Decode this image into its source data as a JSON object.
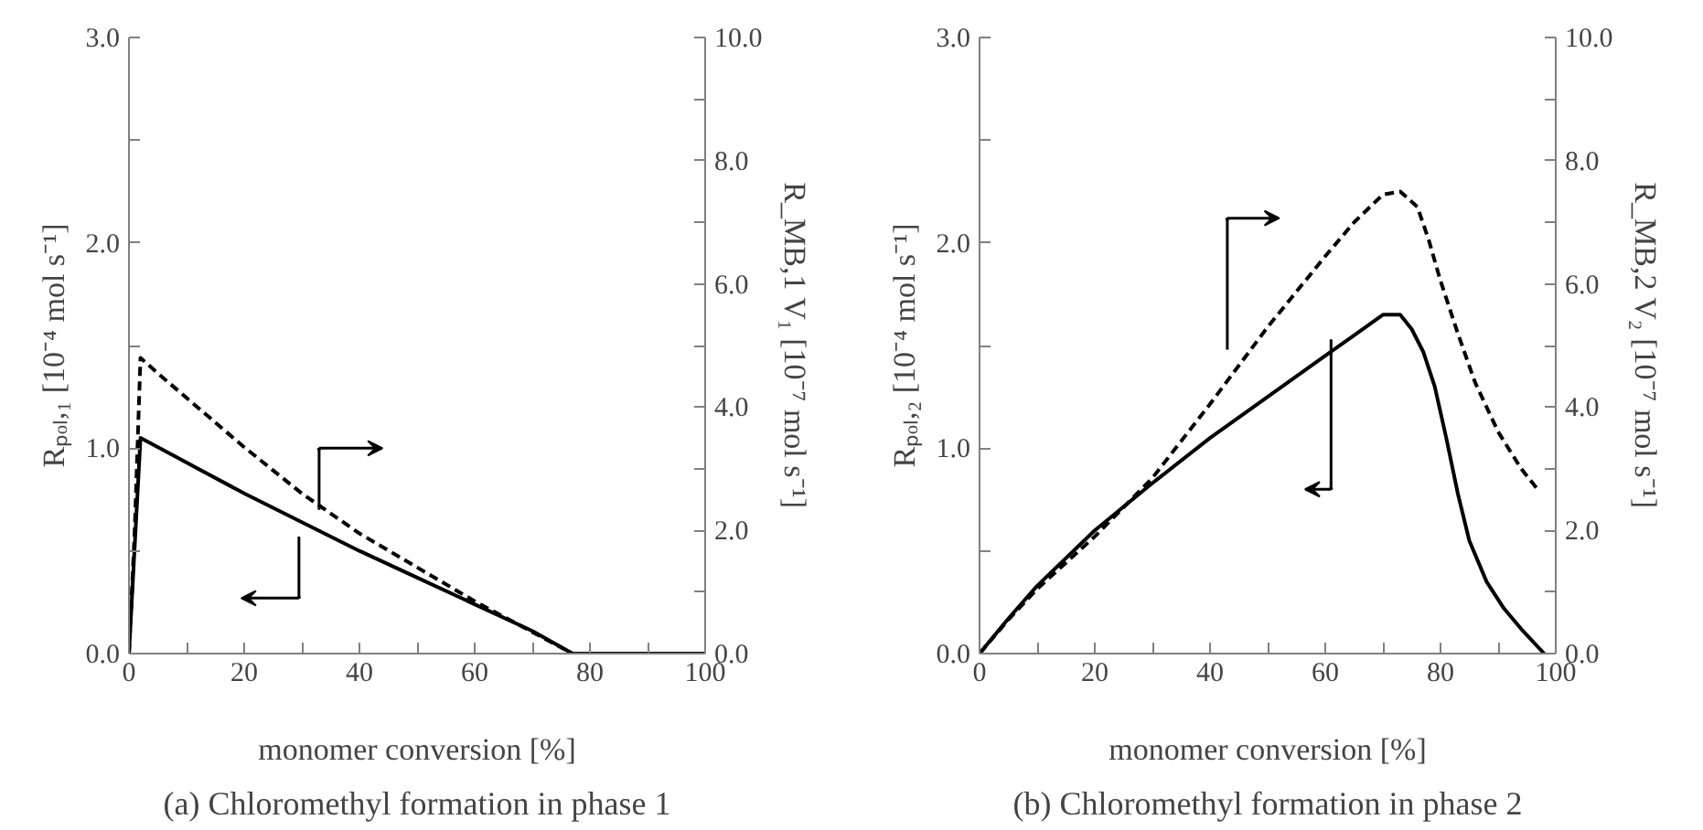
{
  "chart_data": [
    {
      "type": "line",
      "title": "(a) Chloromethyl formation in phase 1",
      "xlabel": "monomer conversion [%]",
      "ylabel": "Rₚₒₗ,₁ [10⁻⁴ mol s⁻¹]",
      "y2label": "R_MB,1 V₁ [10⁻⁷ mol s⁻¹]",
      "xlim": [
        0,
        100
      ],
      "xticks": [
        0,
        {
          "value": 10,
          "label": null
        },
        20,
        {
          "value": 30,
          "label": null
        },
        40,
        {
          "value": 50,
          "label": null
        },
        60,
        {
          "value": 70,
          "label": null
        },
        80,
        {
          "value": 90,
          "label": null
        },
        100
      ],
      "ylim": [
        0,
        3
      ],
      "yticks": [
        {
          "value": 0,
          "label": "0.0"
        },
        {
          "value": 0.5,
          "label": null
        },
        {
          "value": 1,
          "label": "1.0"
        },
        {
          "value": 1.5,
          "label": null
        },
        {
          "value": 2,
          "label": "2.0"
        },
        {
          "value": 2.5,
          "label": null
        },
        {
          "value": 3,
          "label": "3.0"
        }
      ],
      "y2lim": [
        0,
        10
      ],
      "y2ticks": [
        {
          "value": 0,
          "label": "0.0"
        },
        {
          "value": 1,
          "label": null
        },
        {
          "value": 2,
          "label": "2.0"
        },
        {
          "value": 3,
          "label": null
        },
        {
          "value": 4,
          "label": "4.0"
        },
        {
          "value": 5,
          "label": null
        },
        {
          "value": 6,
          "label": "6.0"
        },
        {
          "value": 7,
          "label": null
        },
        {
          "value": 8,
          "label": "8.0"
        },
        {
          "value": 9,
          "label": null
        },
        {
          "value": 10,
          "label": "10.0"
        }
      ],
      "grid": false,
      "series": [
        {
          "color": "#000000",
          "line_style": "solid",
          "x": [
            0,
            2,
            10,
            20,
            30,
            40,
            50,
            60,
            70,
            77,
            100
          ],
          "values": [
            0,
            1.05,
            0.93,
            0.78,
            0.64,
            0.5,
            0.37,
            0.24,
            0.11,
            0,
            0
          ]
        },
        {
          "color": "#000000",
          "line_style": "dashed",
          "axis": "y2",
          "x": [
            0,
            1,
            2,
            5,
            10,
            20,
            30,
            40,
            50,
            60,
            70,
            77,
            100
          ],
          "values": [
            0,
            2,
            4.8,
            4.55,
            4.15,
            3.35,
            2.6,
            1.95,
            1.4,
            0.85,
            0.35,
            0,
            0
          ]
        }
      ]
    },
    {
      "type": "line",
      "title": "(b) Chloromethyl formation in phase 2",
      "xlabel": "monomer conversion [%]",
      "ylabel": "Rₚₒₗ,₂ [10⁻⁴ mol s⁻¹]",
      "y2label": "R_MB,2 V₂ [10⁻⁷ mol s⁻¹]",
      "xlim": [
        0,
        100
      ],
      "xticks": [
        0,
        {
          "value": 10,
          "label": null
        },
        20,
        {
          "value": 30,
          "label": null
        },
        40,
        {
          "value": 50,
          "label": null
        },
        60,
        {
          "value": 70,
          "label": null
        },
        80,
        {
          "value": 90,
          "label": null
        },
        100
      ],
      "ylim": [
        0,
        3
      ],
      "yticks": [
        {
          "value": 0,
          "label": "0.0"
        },
        {
          "value": 0.5,
          "label": null
        },
        {
          "value": 1,
          "label": "1.0"
        },
        {
          "value": 1.5,
          "label": null
        },
        {
          "value": 2,
          "label": "2.0"
        },
        {
          "value": 2.5,
          "label": null
        },
        {
          "value": 3,
          "label": "3.0"
        }
      ],
      "y2lim": [
        0,
        10
      ],
      "y2ticks": [
        {
          "value": 0,
          "label": "0.0"
        },
        {
          "value": 1,
          "label": null
        },
        {
          "value": 2,
          "label": "2.0"
        },
        {
          "value": 3,
          "label": null
        },
        {
          "value": 4,
          "label": "4.0"
        },
        {
          "value": 5,
          "label": null
        },
        {
          "value": 6,
          "label": "6.0"
        },
        {
          "value": 7,
          "label": null
        },
        {
          "value": 8,
          "label": "8.0"
        },
        {
          "value": 9,
          "label": null
        },
        {
          "value": 10,
          "label": "10.0"
        }
      ],
      "grid": false,
      "series": [
        {
          "color": "#000000",
          "line_style": "solid",
          "x": [
            0,
            5,
            10,
            20,
            30,
            40,
            50,
            60,
            65,
            70,
            73,
            75,
            77,
            79,
            81,
            83,
            85,
            88,
            91,
            94,
            98
          ],
          "values": [
            0,
            0.17,
            0.33,
            0.6,
            0.83,
            1.05,
            1.25,
            1.45,
            1.55,
            1.65,
            1.65,
            1.58,
            1.47,
            1.3,
            1.05,
            0.78,
            0.55,
            0.35,
            0.22,
            0.12,
            0
          ]
        },
        {
          "color": "#000000",
          "line_style": "dashed",
          "axis": "y2",
          "x": [
            0,
            5,
            10,
            20,
            30,
            40,
            50,
            60,
            65,
            70,
            73,
            76,
            78,
            80,
            83,
            86,
            90,
            94,
            97
          ],
          "values": [
            0,
            0.55,
            1.05,
            1.9,
            2.85,
            4.05,
            5.3,
            6.45,
            7.0,
            7.45,
            7.5,
            7.25,
            6.7,
            6.05,
            5.2,
            4.4,
            3.6,
            3.0,
            2.65
          ]
        }
      ]
    }
  ]
}
